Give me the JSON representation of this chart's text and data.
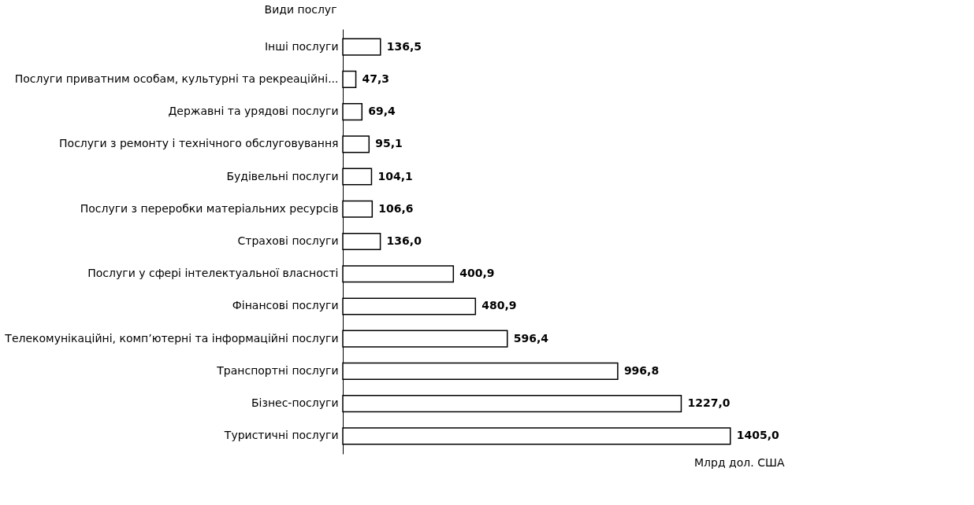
{
  "chart_data": {
    "type": "bar",
    "orientation": "horizontal",
    "ylabel": "Види послуг",
    "xlabel": "Млрд дол. США",
    "categories": [
      "Інші послуги",
      "Послуги приватним особам, культурні та рекреаційні...",
      "Державні та урядові  послуги",
      "Послуги з ремонту і технічного обслуговування",
      "Будівельні послуги",
      "Послуги з переробки матеріальних ресурсів",
      "Страхові послуги",
      "Послуги у сфері інтелектуальної власності",
      "Фінансові послуги",
      "Телекомунікаційні, комп’ютерні та інформаційні послуги",
      "Транспортні послуги",
      "Бізнес-послуги",
      "Туристичні послуги"
    ],
    "values": [
      136.5,
      47.3,
      69.4,
      95.1,
      104.1,
      106.6,
      136.0,
      400.9,
      480.9,
      596.4,
      996.8,
      1227.0,
      1405.0
    ],
    "value_labels": [
      "136,5",
      "47,3",
      "69,4",
      "95,1",
      "104,1",
      "106,6",
      "136,0",
      "400,9",
      "480,9",
      "596,4",
      "996,8",
      "1227,0",
      "1405,0"
    ],
    "color": "#ffffff"
  }
}
